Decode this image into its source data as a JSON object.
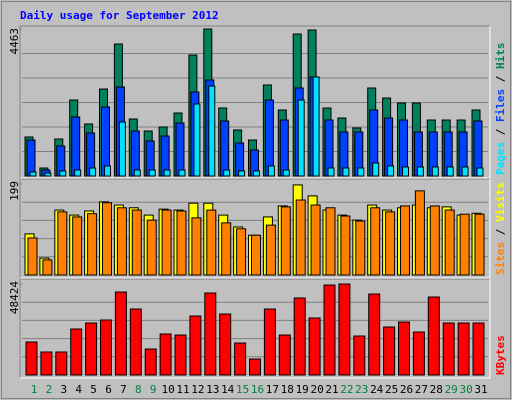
{
  "chart_data": [
    {
      "type": "bar",
      "title": "Daily usage for September 2012",
      "ylim": [
        0,
        4463
      ],
      "yticks": [
        4463
      ],
      "grid_divisions": 6,
      "legend_separator": " / ",
      "series": [
        {
          "name": "Hits",
          "color": "#00805c",
          "values": [
            1184,
            243,
            1123,
            2307,
            1579,
            2641,
            4007,
            1730,
            1366,
            1488,
            1913,
            3674,
            4463,
            2064,
            1397,
            1093,
            2763,
            2004,
            4311,
            4432,
            2064,
            1761,
            1457,
            2672,
            2368,
            2216,
            2216,
            1700,
            1700,
            1700,
            2004
          ]
        },
        {
          "name": "Files",
          "color": "#0040ff",
          "values": [
            1093,
            182,
            911,
            1791,
            1306,
            2095,
            2702,
            1366,
            1063,
            1214,
            1609,
            2550,
            2915,
            1670,
            1002,
            789,
            2307,
            1700,
            2672,
            3006,
            1700,
            1336,
            1336,
            2004,
            1761,
            1700,
            1336,
            1336,
            1336,
            1336,
            1670
          ]
        },
        {
          "name": "Pages",
          "color": "#00e0ff",
          "values": [
            121,
            91,
            152,
            182,
            243,
            304,
            1639,
            182,
            182,
            182,
            182,
            2186,
            2732,
            182,
            152,
            152,
            304,
            182,
            2307,
            3006,
            243,
            243,
            243,
            395,
            304,
            273,
            273,
            273,
            273,
            273,
            243
          ]
        }
      ]
    },
    {
      "type": "bar",
      "ylim": [
        0,
        199
      ],
      "yticks": [
        199
      ],
      "grid_divisions": 5,
      "legend_separator": " / ",
      "series": [
        {
          "name": "Visits",
          "color": "#ffff00",
          "values": [
            90,
            37,
            142,
            131,
            140,
            160,
            153,
            147,
            131,
            144,
            142,
            157,
            157,
            131,
            105,
            87,
            127,
            151,
            197,
            173,
            142,
            131,
            120,
            153,
            142,
            147,
            153,
            147,
            149,
            131,
            135
          ]
        },
        {
          "name": "Sites",
          "color": "#ff8000",
          "values": [
            81,
            33,
            138,
            127,
            134,
            158,
            147,
            142,
            120,
            142,
            140,
            125,
            142,
            114,
            101,
            87,
            109,
            149,
            164,
            153,
            147,
            129,
            118,
            147,
            138,
            151,
            184,
            151,
            142,
            133,
            133
          ]
        }
      ]
    },
    {
      "type": "bar",
      "ylim": [
        0,
        48424
      ],
      "yticks": [
        48424
      ],
      "grid_divisions": 5,
      "series": [
        {
          "name": "KBytes",
          "color": "#ff0000",
          "values": [
            17556,
            12236,
            12236,
            24472,
            27664,
            29260,
            44156,
            35112,
            13832,
            21812,
            21280,
            31388,
            43624,
            32452,
            17024,
            8512,
            35112,
            21280,
            40964,
            30324,
            47880,
            48424,
            20748,
            43092,
            25536,
            28196,
            22876,
            41496,
            27664,
            27664,
            27664
          ]
        }
      ],
      "categories": [
        "1",
        "2",
        "3",
        "4",
        "5",
        "6",
        "7",
        "8",
        "9",
        "10",
        "11",
        "12",
        "13",
        "14",
        "15",
        "16",
        "17",
        "18",
        "19",
        "20",
        "21",
        "22",
        "23",
        "24",
        "25",
        "26",
        "27",
        "28",
        "29",
        "30",
        "31"
      ],
      "category_colors": [
        "#008040",
        "#008040",
        "#000000",
        "#000000",
        "#000000",
        "#000000",
        "#000000",
        "#008040",
        "#008040",
        "#000000",
        "#000000",
        "#000000",
        "#000000",
        "#000000",
        "#008040",
        "#008040",
        "#000000",
        "#000000",
        "#000000",
        "#000000",
        "#000000",
        "#008040",
        "#008040",
        "#000000",
        "#000000",
        "#000000",
        "#000000",
        "#000000",
        "#008040",
        "#008040",
        "#000000"
      ]
    }
  ]
}
